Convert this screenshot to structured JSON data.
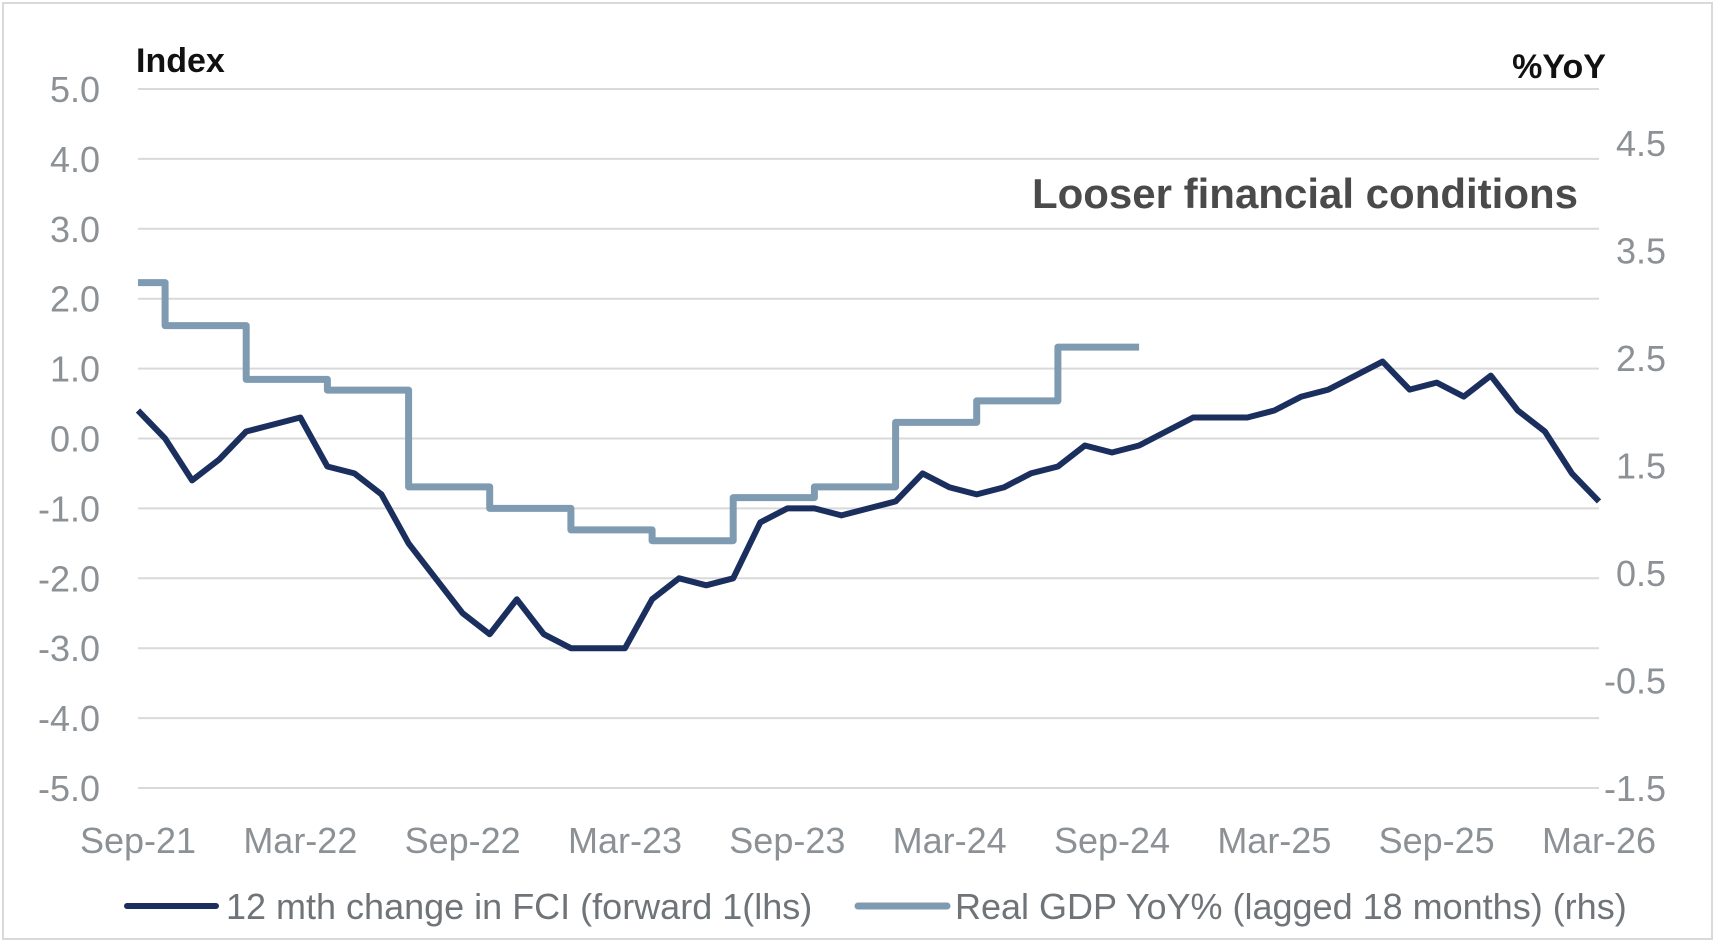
{
  "chart_data": {
    "type": "line",
    "title": "",
    "left_axis": {
      "label": "Index",
      "range": [
        -5.0,
        5.0
      ],
      "ticks": [
        "5.0",
        "4.0",
        "3.0",
        "2.0",
        "1.0",
        "0.0",
        "-1.0",
        "-2.0",
        "-3.0",
        "-4.0",
        "-5.0"
      ]
    },
    "right_axis": {
      "label": "%YoY",
      "range": [
        -1.5,
        5.0
      ],
      "ticks": [
        "4.5",
        "3.5",
        "2.5",
        "1.5",
        "0.5",
        "-0.5",
        "-1.5"
      ]
    },
    "x_axis": {
      "range": [
        "2021-09",
        "2026-03"
      ],
      "ticks": [
        "Sep-21",
        "Mar-22",
        "Sep-22",
        "Mar-23",
        "Sep-23",
        "Mar-24",
        "Sep-24",
        "Mar-25",
        "Sep-25",
        "Mar-26"
      ]
    },
    "grid": true,
    "legend_position": "bottom",
    "annotations": [
      "Looser financial conditions"
    ],
    "colors": {
      "fci": "#1b2f5e",
      "gdp": "#7f9bb2",
      "grid": "#d9d9d9",
      "tick": "#8c9196"
    },
    "series": [
      {
        "name": "12 mth change in FCI (forward 1(lhs)",
        "axis": "left",
        "x": [
          "2021-09",
          "2021-10",
          "2021-11",
          "2021-12",
          "2022-01",
          "2022-02",
          "2022-03",
          "2022-04",
          "2022-05",
          "2022-06",
          "2022-07",
          "2022-08",
          "2022-09",
          "2022-10",
          "2022-11",
          "2022-12",
          "2023-01",
          "2023-02",
          "2023-03",
          "2023-04",
          "2023-05",
          "2023-06",
          "2023-07",
          "2023-08",
          "2023-09",
          "2023-10",
          "2023-11",
          "2023-12",
          "2024-01",
          "2024-02",
          "2024-03",
          "2024-04",
          "2024-05",
          "2024-06",
          "2024-07",
          "2024-08",
          "2024-09",
          "2024-10",
          "2024-11",
          "2024-12",
          "2025-01",
          "2025-02",
          "2025-03",
          "2025-04",
          "2025-05",
          "2025-06",
          "2025-07",
          "2025-08",
          "2025-09",
          "2025-10",
          "2025-11",
          "2025-12",
          "2026-01",
          "2026-02",
          "2026-03"
        ],
        "y": [
          0.4,
          0.0,
          -0.6,
          -0.3,
          0.1,
          0.2,
          0.3,
          -0.4,
          -0.5,
          -0.8,
          -1.5,
          -2.0,
          -2.5,
          -2.8,
          -2.3,
          -2.8,
          -3.0,
          -3.0,
          -3.0,
          -2.3,
          -2.0,
          -2.1,
          -2.0,
          -1.2,
          -1.0,
          -1.0,
          -1.1,
          -1.0,
          -0.9,
          -0.5,
          -0.7,
          -0.8,
          -0.7,
          -0.5,
          -0.4,
          -0.1,
          -0.2,
          -0.1,
          0.1,
          0.3,
          0.3,
          0.3,
          0.4,
          0.6,
          0.7,
          0.9,
          1.1,
          0.7,
          0.8,
          0.6,
          0.9,
          0.4,
          0.1,
          -0.5,
          -0.9
        ]
      },
      {
        "name": "Real GDP YoY% (lagged 18 months) (rhs)",
        "axis": "right",
        "x": [
          "2021-09",
          "2021-10",
          "2022-01",
          "2022-04",
          "2022-07",
          "2022-10",
          "2023-01",
          "2023-04",
          "2023-07",
          "2023-10",
          "2024-01",
          "2024-04",
          "2024-07",
          "2024-10"
        ],
        "y": [
          3.2,
          2.8,
          2.3,
          2.2,
          1.3,
          1.1,
          0.9,
          0.8,
          1.2,
          1.3,
          1.9,
          2.1,
          2.6,
          2.6
        ]
      }
    ]
  }
}
